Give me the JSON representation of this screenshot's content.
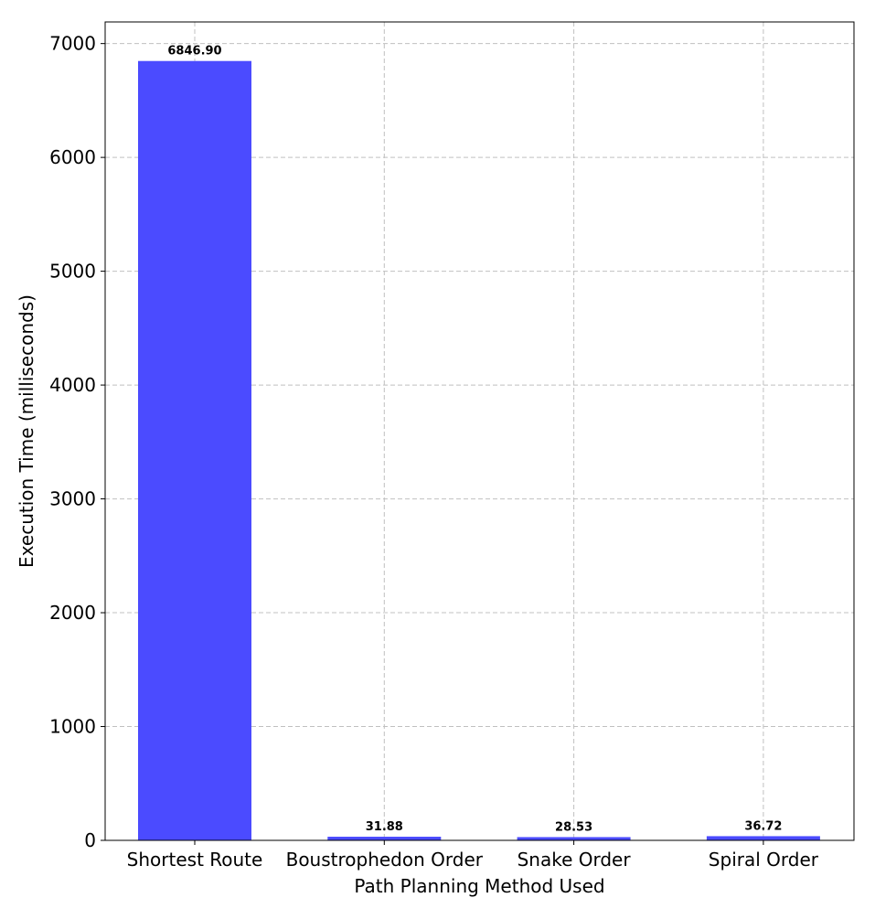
{
  "chart_data": {
    "type": "bar",
    "title": "",
    "xlabel": "Path Planning Method Used",
    "ylabel": "Execution Time (milliseconds)",
    "categories": [
      "Shortest Route",
      "Boustrophedon Order",
      "Snake Order",
      "Spiral Order"
    ],
    "values": [
      6846.9,
      31.88,
      28.53,
      36.72
    ],
    "value_labels": [
      "6846.90",
      "31.88",
      "28.53",
      "36.72"
    ],
    "ylim": [
      0,
      7190
    ],
    "yticks": [
      0,
      1000,
      2000,
      3000,
      4000,
      5000,
      6000,
      7000
    ],
    "ytick_labels": [
      "0",
      "1000",
      "2000",
      "3000",
      "4000",
      "5000",
      "6000",
      "7000"
    ],
    "grid": true,
    "bar_color": "#4b4bff"
  }
}
